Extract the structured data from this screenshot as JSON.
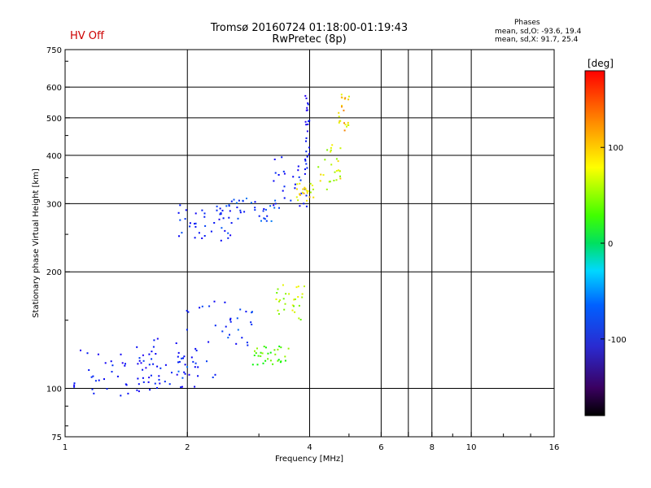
{
  "header": {
    "hv_status": "HV Off",
    "title_line1": "Tromsø 20160724 01:18:00-01:19:43",
    "title_line2": "RwPretec (8p)",
    "stats_title": "Phases",
    "stats_o": "mean, sd,O:  -93.6, 19.4",
    "stats_x": "mean, sd,X:  91.7, 25.4"
  },
  "colors": {
    "frame": "#000000",
    "background": "#ffffff",
    "hv_off": "#cc0000"
  },
  "chart_data": {
    "type": "scatter",
    "xlabel": "Frequency [MHz]",
    "ylabel": "Stationary phase Virtual Height [km]",
    "xscale": "log",
    "yscale": "log",
    "xlim": [
      1,
      16
    ],
    "ylim": [
      75,
      750
    ],
    "x_ticks": [
      1,
      2,
      4,
      6,
      7,
      8,
      10,
      16
    ],
    "x_tick_labels": [
      "1",
      "2",
      "4",
      "6",
      "8",
      "10",
      "16"
    ],
    "y_ticks": [
      75,
      100,
      200,
      300,
      400,
      500,
      600,
      750
    ],
    "grid": true,
    "colorbar": {
      "label": "[deg]",
      "range": [
        -180,
        180
      ],
      "ticks": [
        100,
        0,
        -100
      ],
      "tick_labels": [
        "100",
        "0",
        "-100"
      ],
      "colormap": "rainbow (black-purple-blue-cyan-green-yellow-orange-red)"
    },
    "series": [
      {
        "mode": "O",
        "clusters": [
          {
            "x_range": [
              1.05,
              1.65
            ],
            "y_range": [
              93,
              128
            ],
            "phase_mean": -110
          },
          {
            "x_range": [
              1.5,
              2.1
            ],
            "y_range": [
              100,
              135
            ],
            "phase_mean": -110
          },
          {
            "x_range": [
              1.9,
              2.9
            ],
            "y_range": [
              105,
              175
            ],
            "phase_mean": -95
          },
          {
            "x_range": [
              1.9,
              2.6
            ],
            "y_range": [
              240,
              300
            ],
            "phase_mean": -100
          },
          {
            "x_range": [
              2.4,
              3.3
            ],
            "y_range": [
              270,
              310
            ],
            "phase_mean": -90
          },
          {
            "x_range": [
              3.2,
              4.0
            ],
            "y_range": [
              290,
              400
            ],
            "phase_mean": -110
          },
          {
            "x_range": [
              3.9,
              4.0
            ],
            "y_range": [
              390,
              600
            ],
            "phase_mean": -110
          }
        ]
      },
      {
        "mode": "X",
        "clusters": [
          {
            "x_range": [
              2.9,
              3.6
            ],
            "y_range": [
              115,
              130
            ],
            "phase_mean": 60
          },
          {
            "x_range": [
              3.3,
              3.9
            ],
            "y_range": [
              150,
              185
            ],
            "phase_mean": 90
          },
          {
            "x_range": [
              3.7,
              4.1
            ],
            "y_range": [
              305,
              340
            ],
            "phase_mean": 110
          },
          {
            "x_range": [
              4.2,
              4.8
            ],
            "y_range": [
              320,
              430
            ],
            "phase_mean": 100
          },
          {
            "x_range": [
              4.7,
              5.05
            ],
            "y_range": [
              430,
              580
            ],
            "phase_mean": 120
          }
        ]
      }
    ]
  }
}
